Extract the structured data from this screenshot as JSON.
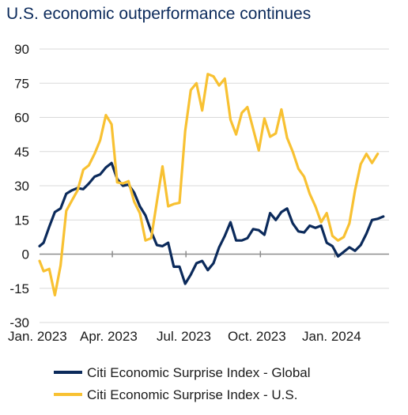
{
  "chart_data": {
    "type": "line",
    "title": "U.S. economic outperformance continues",
    "ylim": [
      -30,
      90
    ],
    "yticks": [
      90,
      75,
      60,
      45,
      30,
      15,
      0,
      -15,
      -30
    ],
    "xticks": [
      "Jan. 2023",
      "Apr. 2023",
      "Jul. 2023",
      "Oct. 2023",
      "Jan. 2024"
    ],
    "x_start": "2023-01-01",
    "x_end": "2024-03-08",
    "grid": true,
    "legend_position": "bottom",
    "series": [
      {
        "name": "Citi Economic Surprise Index - Global",
        "color": "#0b2a5b",
        "points": [
          [
            "2023-01-01",
            3.5
          ],
          [
            "2023-01-06",
            5
          ],
          [
            "2023-01-13",
            12
          ],
          [
            "2023-01-20",
            18.5
          ],
          [
            "2023-01-27",
            20
          ],
          [
            "2023-02-03",
            26.5
          ],
          [
            "2023-02-10",
            28
          ],
          [
            "2023-02-17",
            29
          ],
          [
            "2023-02-24",
            28.5
          ],
          [
            "2023-03-03",
            31
          ],
          [
            "2023-03-10",
            34
          ],
          [
            "2023-03-17",
            35
          ],
          [
            "2023-03-24",
            38
          ],
          [
            "2023-03-31",
            40
          ],
          [
            "2023-04-07",
            33
          ],
          [
            "2023-04-14",
            30
          ],
          [
            "2023-04-21",
            30.5
          ],
          [
            "2023-04-28",
            27
          ],
          [
            "2023-05-05",
            21
          ],
          [
            "2023-05-12",
            17
          ],
          [
            "2023-05-19",
            10
          ],
          [
            "2023-05-26",
            4
          ],
          [
            "2023-06-02",
            3.5
          ],
          [
            "2023-06-09",
            5
          ],
          [
            "2023-06-16",
            -5.5
          ],
          [
            "2023-06-23",
            -5.5
          ],
          [
            "2023-06-30",
            -13
          ],
          [
            "2023-07-07",
            -9
          ],
          [
            "2023-07-14",
            -4
          ],
          [
            "2023-07-21",
            -3
          ],
          [
            "2023-07-28",
            -7
          ],
          [
            "2023-08-04",
            -4
          ],
          [
            "2023-08-11",
            3
          ],
          [
            "2023-08-18",
            8
          ],
          [
            "2023-08-25",
            14
          ],
          [
            "2023-09-01",
            6
          ],
          [
            "2023-09-08",
            6
          ],
          [
            "2023-09-15",
            7
          ],
          [
            "2023-09-22",
            11
          ],
          [
            "2023-09-29",
            10.5
          ],
          [
            "2023-10-06",
            8.5
          ],
          [
            "2023-10-13",
            18
          ],
          [
            "2023-10-20",
            15
          ],
          [
            "2023-10-27",
            18.5
          ],
          [
            "2023-11-03",
            20
          ],
          [
            "2023-11-10",
            13.5
          ],
          [
            "2023-11-17",
            10
          ],
          [
            "2023-11-24",
            9.5
          ],
          [
            "2023-12-01",
            12.5
          ],
          [
            "2023-12-08",
            11.5
          ],
          [
            "2023-12-15",
            12.5
          ],
          [
            "2023-12-22",
            5
          ],
          [
            "2023-12-29",
            3.5
          ],
          [
            "2024-01-05",
            -1
          ],
          [
            "2024-01-12",
            1
          ],
          [
            "2024-01-19",
            3
          ],
          [
            "2024-01-26",
            1.5
          ],
          [
            "2024-02-02",
            4
          ],
          [
            "2024-02-09",
            9
          ],
          [
            "2024-02-16",
            15
          ],
          [
            "2024-02-23",
            15.5
          ],
          [
            "2024-03-01",
            16.5
          ]
        ]
      },
      {
        "name": "Citi Economic Surprise Index - U.S.",
        "color": "#f8c132",
        "points": [
          [
            "2023-01-01",
            -3
          ],
          [
            "2023-01-06",
            -7.5
          ],
          [
            "2023-01-13",
            -6.5
          ],
          [
            "2023-01-20",
            -18
          ],
          [
            "2023-01-27",
            -5
          ],
          [
            "2023-02-03",
            19
          ],
          [
            "2023-02-10",
            23.5
          ],
          [
            "2023-02-17",
            28
          ],
          [
            "2023-02-24",
            37
          ],
          [
            "2023-03-03",
            39
          ],
          [
            "2023-03-10",
            44
          ],
          [
            "2023-03-17",
            50
          ],
          [
            "2023-03-24",
            61
          ],
          [
            "2023-03-31",
            57
          ],
          [
            "2023-04-07",
            31.5
          ],
          [
            "2023-04-14",
            31
          ],
          [
            "2023-04-21",
            32
          ],
          [
            "2023-04-28",
            23
          ],
          [
            "2023-05-05",
            18
          ],
          [
            "2023-05-12",
            6
          ],
          [
            "2023-05-19",
            7
          ],
          [
            "2023-05-26",
            23
          ],
          [
            "2023-06-02",
            38.5
          ],
          [
            "2023-06-09",
            21
          ],
          [
            "2023-06-16",
            22
          ],
          [
            "2023-06-23",
            22.5
          ],
          [
            "2023-06-30",
            54
          ],
          [
            "2023-07-07",
            72
          ],
          [
            "2023-07-14",
            75
          ],
          [
            "2023-07-21",
            63
          ],
          [
            "2023-07-28",
            79
          ],
          [
            "2023-08-04",
            78
          ],
          [
            "2023-08-11",
            74
          ],
          [
            "2023-08-18",
            77
          ],
          [
            "2023-08-25",
            59
          ],
          [
            "2023-09-01",
            52.5
          ],
          [
            "2023-09-08",
            62
          ],
          [
            "2023-09-15",
            64.5
          ],
          [
            "2023-09-22",
            55
          ],
          [
            "2023-09-29",
            45.5
          ],
          [
            "2023-10-06",
            59.5
          ],
          [
            "2023-10-13",
            51.5
          ],
          [
            "2023-10-20",
            53
          ],
          [
            "2023-10-27",
            63.5
          ],
          [
            "2023-11-03",
            51
          ],
          [
            "2023-11-10",
            45
          ],
          [
            "2023-11-17",
            37.5
          ],
          [
            "2023-11-24",
            34
          ],
          [
            "2023-12-01",
            26.5
          ],
          [
            "2023-12-08",
            21
          ],
          [
            "2023-12-15",
            14
          ],
          [
            "2023-12-22",
            18
          ],
          [
            "2023-12-29",
            8
          ],
          [
            "2024-01-05",
            6
          ],
          [
            "2024-01-12",
            7.5
          ],
          [
            "2024-01-19",
            13.5
          ],
          [
            "2024-01-26",
            28
          ],
          [
            "2024-02-02",
            39.5
          ],
          [
            "2024-02-09",
            44
          ],
          [
            "2024-02-16",
            40
          ],
          [
            "2024-02-23",
            44
          ]
        ]
      }
    ]
  }
}
